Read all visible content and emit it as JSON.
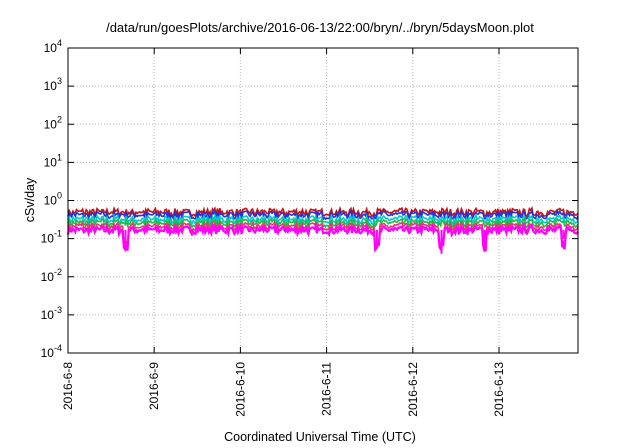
{
  "chart_data": {
    "type": "line",
    "title": "/data/run/goesPlots/archive/2016-06-13/22:00/bryn/../bryn/5daysMoon.plot",
    "xlabel": "Coordinated Universal Time (UTC)",
    "ylabel": "cSv/day",
    "yscale": "log",
    "ylim": [
      0.0001,
      10000
    ],
    "xlim": [
      "2016-06-08",
      "2016-06-13 22:00"
    ],
    "xticks": [
      "2016-6-8",
      "2016-6-9",
      "2016-6-10",
      "2016-6-11",
      "2016-6-12",
      "2016-6-13"
    ],
    "yticks": [
      {
        "base": "10",
        "exp": "-4"
      },
      {
        "base": "10",
        "exp": "-3"
      },
      {
        "base": "10",
        "exp": "-2"
      },
      {
        "base": "10",
        "exp": "-1"
      },
      {
        "base": "10",
        "exp": "0"
      },
      {
        "base": "10",
        "exp": "1"
      },
      {
        "base": "10",
        "exp": "2"
      },
      {
        "base": "10",
        "exp": "3"
      },
      {
        "base": "10",
        "exp": "4"
      }
    ],
    "grid": true,
    "series": [
      {
        "color": "#cc1111",
        "base": 0.5
      },
      {
        "color": "#2233dd",
        "base": 0.42
      },
      {
        "color": "#00cccc",
        "base": 0.32
      },
      {
        "color": "#22bb44",
        "base": 0.26
      },
      {
        "color": "#ee3377",
        "base": 0.21
      },
      {
        "color": "#ff00ff",
        "base": 0.17
      }
    ],
    "dips": [
      {
        "x": "2016-06-08 16:00",
        "y": 0.07
      },
      {
        "x": "2016-06-11 14:00",
        "y": 0.06
      },
      {
        "x": "2016-06-12 08:00",
        "y": 0.04
      },
      {
        "x": "2016-06-12 20:00",
        "y": 0.06
      },
      {
        "x": "2016-06-13 18:00",
        "y": 0.1
      }
    ]
  }
}
